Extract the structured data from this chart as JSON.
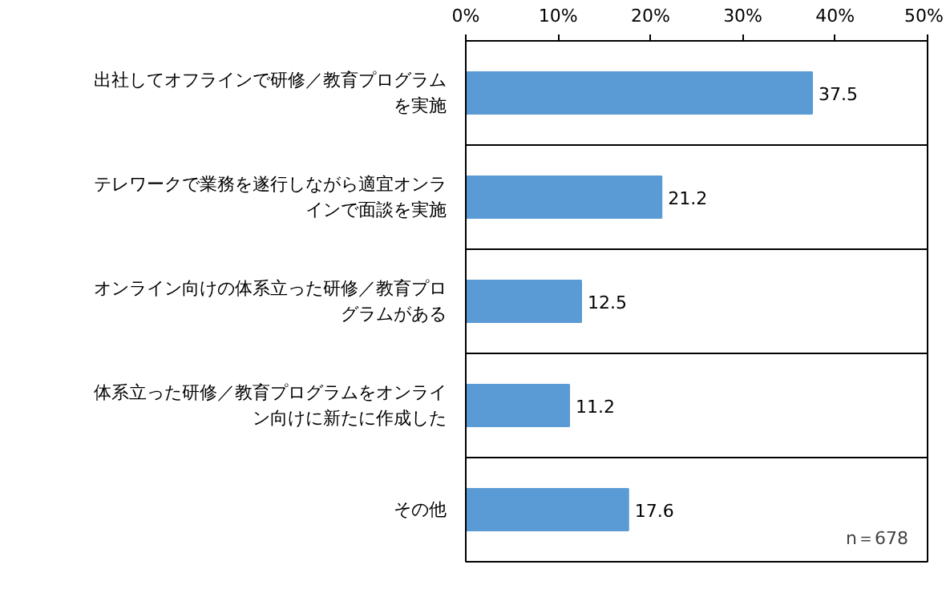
{
  "chart_data": {
    "type": "bar",
    "orientation": "horizontal",
    "categories": [
      "出社してオフラインで研修／教育プログラムを実施",
      "テレワークで業務を遂行しながら適宜オンラインで面談を実施",
      "オンライン向けの体系立った研修／教育プログラムがある",
      "体系立った研修／教育プログラムをオンライン向けに新たに作成した",
      "その他"
    ],
    "values": [
      37.5,
      21.2,
      12.5,
      11.2,
      17.6
    ],
    "color": "#5b9bd5",
    "xlim": [
      0,
      50
    ],
    "xticks": [
      {
        "value": 0,
        "label": "0%"
      },
      {
        "value": 10,
        "label": "10%"
      },
      {
        "value": 20,
        "label": "20%"
      },
      {
        "value": 30,
        "label": "30%"
      },
      {
        "value": 40,
        "label": "40%"
      },
      {
        "value": 50,
        "label": "50%"
      }
    ],
    "data_labels": true,
    "grid": false,
    "annotations": [
      "n＝678"
    ]
  }
}
